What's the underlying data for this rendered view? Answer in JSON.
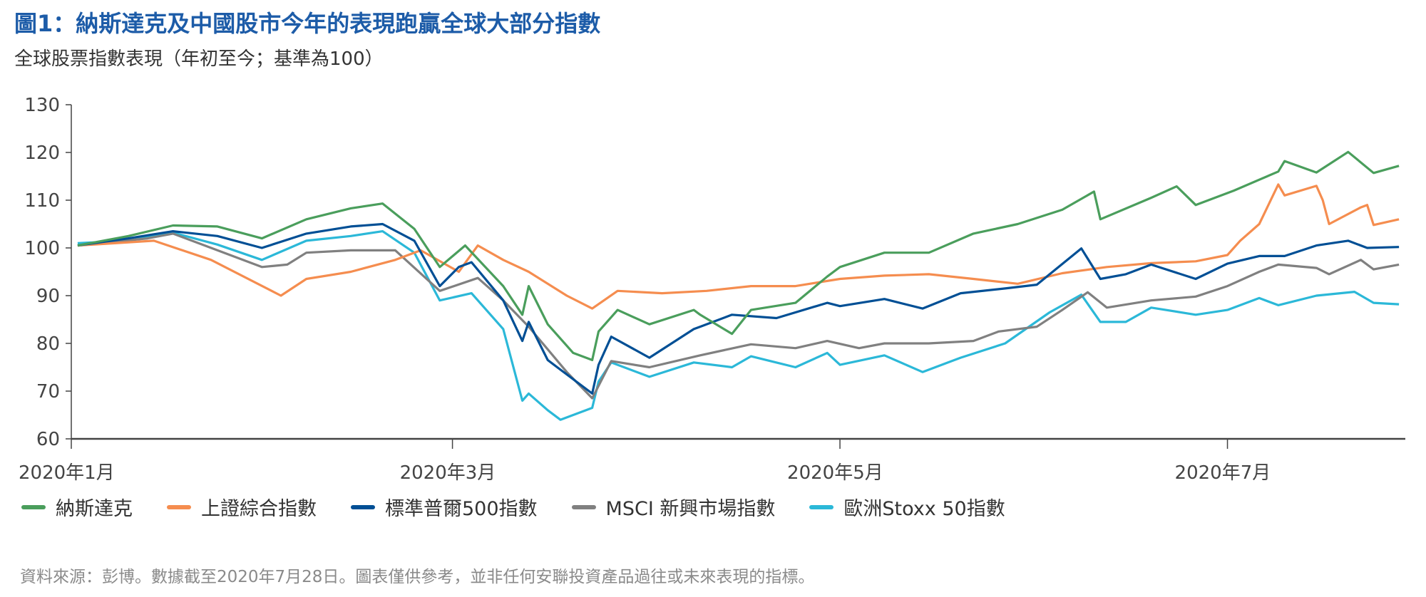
{
  "chart_data": {
    "type": "line",
    "title": "圖1：納斯達克及中國股市今年的表現跑贏全球大部分指數",
    "subtitle": "全球股票指數表現（年初至今；基準為100）",
    "ylim": [
      60,
      130
    ],
    "yticks": [
      "60",
      "70",
      "80",
      "90",
      "100",
      "110",
      "120",
      "130"
    ],
    "xlim": [
      "2020-01-01",
      "2020-07-29"
    ],
    "xticks": [
      {
        "date": "2020-01-01",
        "label": "2020年1月"
      },
      {
        "date": "2020-03-01",
        "label": "2020年3月"
      },
      {
        "date": "2020-05-01",
        "label": "2020年5月"
      },
      {
        "date": "2020-07-01",
        "label": "2020年7月"
      }
    ],
    "grid": false,
    "legend_placement": "bottom",
    "series": [
      {
        "name": "納斯達克",
        "color": "#4a9e5c",
        "points": [
          [
            "2020-01-02",
            100.5
          ],
          [
            "2020-01-10",
            102.5
          ],
          [
            "2020-01-17",
            104.7
          ],
          [
            "2020-01-24",
            104.5
          ],
          [
            "2020-01-31",
            102
          ],
          [
            "2020-02-07",
            106
          ],
          [
            "2020-02-14",
            108.3
          ],
          [
            "2020-02-19",
            109.3
          ],
          [
            "2020-02-24",
            104
          ],
          [
            "2020-02-28",
            96
          ],
          [
            "2020-03-03",
            100.5
          ],
          [
            "2020-03-09",
            92
          ],
          [
            "2020-03-12",
            86
          ],
          [
            "2020-03-13",
            92
          ],
          [
            "2020-03-16",
            84
          ],
          [
            "2020-03-20",
            78
          ],
          [
            "2020-03-23",
            76.5
          ],
          [
            "2020-03-24",
            82.5
          ],
          [
            "2020-03-27",
            87
          ],
          [
            "2020-04-01",
            84
          ],
          [
            "2020-04-08",
            87
          ],
          [
            "2020-04-09",
            86
          ],
          [
            "2020-04-14",
            82
          ],
          [
            "2020-04-17",
            87
          ],
          [
            "2020-04-24",
            88.5
          ],
          [
            "2020-04-29",
            94
          ],
          [
            "2020-05-01",
            96
          ],
          [
            "2020-05-08",
            99
          ],
          [
            "2020-05-15",
            99
          ],
          [
            "2020-05-22",
            103
          ],
          [
            "2020-05-29",
            105
          ],
          [
            "2020-06-05",
            108
          ],
          [
            "2020-06-10",
            111.8
          ],
          [
            "2020-06-11",
            106
          ],
          [
            "2020-06-19",
            110.5
          ],
          [
            "2020-06-23",
            112.9
          ],
          [
            "2020-06-26",
            109
          ],
          [
            "2020-07-02",
            112
          ],
          [
            "2020-07-09",
            116
          ],
          [
            "2020-07-10",
            118.2
          ],
          [
            "2020-07-15",
            115.8
          ],
          [
            "2020-07-20",
            120.1
          ],
          [
            "2020-07-24",
            115.7
          ],
          [
            "2020-07-28",
            117.2
          ]
        ]
      },
      {
        "name": "上證綜合指數",
        "color": "#f58d4f",
        "points": [
          [
            "2020-01-02",
            100.5
          ],
          [
            "2020-01-14",
            101.5
          ],
          [
            "2020-01-23",
            97.5
          ],
          [
            "2020-02-03",
            90
          ],
          [
            "2020-02-07",
            93.5
          ],
          [
            "2020-02-14",
            95
          ],
          [
            "2020-02-21",
            97.5
          ],
          [
            "2020-02-25",
            99.5
          ],
          [
            "2020-03-02",
            95
          ],
          [
            "2020-03-05",
            100.5
          ],
          [
            "2020-03-09",
            97.5
          ],
          [
            "2020-03-13",
            95
          ],
          [
            "2020-03-19",
            90
          ],
          [
            "2020-03-23",
            87.3
          ],
          [
            "2020-03-27",
            91
          ],
          [
            "2020-04-03",
            90.5
          ],
          [
            "2020-04-10",
            91
          ],
          [
            "2020-04-17",
            92
          ],
          [
            "2020-04-24",
            92
          ],
          [
            "2020-05-01",
            93.5
          ],
          [
            "2020-05-08",
            94.2
          ],
          [
            "2020-05-15",
            94.5
          ],
          [
            "2020-05-22",
            93.5
          ],
          [
            "2020-05-29",
            92.5
          ],
          [
            "2020-06-05",
            94.7
          ],
          [
            "2020-06-12",
            96
          ],
          [
            "2020-06-19",
            96.8
          ],
          [
            "2020-06-26",
            97.2
          ],
          [
            "2020-07-01",
            98.5
          ],
          [
            "2020-07-03",
            101.5
          ],
          [
            "2020-07-06",
            105
          ],
          [
            "2020-07-09",
            113.3
          ],
          [
            "2020-07-10",
            111
          ],
          [
            "2020-07-15",
            113
          ],
          [
            "2020-07-16",
            110
          ],
          [
            "2020-07-17",
            105
          ],
          [
            "2020-07-22",
            108.5
          ],
          [
            "2020-07-23",
            109
          ],
          [
            "2020-07-24",
            104.8
          ],
          [
            "2020-07-28",
            106
          ]
        ]
      },
      {
        "name": "標準普爾500指數",
        "color": "#004f95",
        "points": [
          [
            "2020-01-02",
            100.5
          ],
          [
            "2020-01-10",
            102
          ],
          [
            "2020-01-17",
            103.5
          ],
          [
            "2020-01-24",
            102.5
          ],
          [
            "2020-01-31",
            100
          ],
          [
            "2020-02-07",
            103
          ],
          [
            "2020-02-14",
            104.5
          ],
          [
            "2020-02-19",
            105
          ],
          [
            "2020-02-24",
            101.5
          ],
          [
            "2020-02-28",
            92
          ],
          [
            "2020-03-02",
            96
          ],
          [
            "2020-03-04",
            97
          ],
          [
            "2020-03-09",
            89
          ],
          [
            "2020-03-12",
            80.5
          ],
          [
            "2020-03-13",
            84.5
          ],
          [
            "2020-03-16",
            76.5
          ],
          [
            "2020-03-18",
            74.5
          ],
          [
            "2020-03-23",
            69.5
          ],
          [
            "2020-03-24",
            75.5
          ],
          [
            "2020-03-26",
            81.4
          ],
          [
            "2020-04-01",
            77
          ],
          [
            "2020-04-08",
            83
          ],
          [
            "2020-04-09",
            83.5
          ],
          [
            "2020-04-14",
            86
          ],
          [
            "2020-04-21",
            85.3
          ],
          [
            "2020-04-29",
            88.5
          ],
          [
            "2020-05-01",
            87.8
          ],
          [
            "2020-05-08",
            89.3
          ],
          [
            "2020-05-14",
            87.3
          ],
          [
            "2020-05-20",
            90.5
          ],
          [
            "2020-05-27",
            91.5
          ],
          [
            "2020-06-01",
            92.3
          ],
          [
            "2020-06-08",
            99.9
          ],
          [
            "2020-06-11",
            93.5
          ],
          [
            "2020-06-15",
            94.5
          ],
          [
            "2020-06-19",
            96.5
          ],
          [
            "2020-06-26",
            93.5
          ],
          [
            "2020-07-01",
            96.7
          ],
          [
            "2020-07-06",
            98.3
          ],
          [
            "2020-07-10",
            98.3
          ],
          [
            "2020-07-15",
            100.5
          ],
          [
            "2020-07-20",
            101.5
          ],
          [
            "2020-07-23",
            100
          ],
          [
            "2020-07-28",
            100.2
          ]
        ]
      },
      {
        "name": "MSCI 新興市場指數",
        "color": "#808080",
        "points": [
          [
            "2020-01-02",
            100.5
          ],
          [
            "2020-01-13",
            102
          ],
          [
            "2020-01-17",
            103
          ],
          [
            "2020-01-21",
            101
          ],
          [
            "2020-01-31",
            96
          ],
          [
            "2020-02-04",
            96.5
          ],
          [
            "2020-02-07",
            99
          ],
          [
            "2020-02-14",
            99.5
          ],
          [
            "2020-02-21",
            99.5
          ],
          [
            "2020-02-28",
            91
          ],
          [
            "2020-03-05",
            93.7
          ],
          [
            "2020-03-09",
            89
          ],
          [
            "2020-03-13",
            83.5
          ],
          [
            "2020-03-19",
            74
          ],
          [
            "2020-03-23",
            68.5
          ],
          [
            "2020-03-26",
            76.3
          ],
          [
            "2020-04-01",
            75
          ],
          [
            "2020-04-09",
            77.5
          ],
          [
            "2020-04-17",
            79.8
          ],
          [
            "2020-04-24",
            79
          ],
          [
            "2020-04-29",
            80.5
          ],
          [
            "2020-05-04",
            79
          ],
          [
            "2020-05-08",
            80
          ],
          [
            "2020-05-15",
            80
          ],
          [
            "2020-05-22",
            80.5
          ],
          [
            "2020-05-26",
            82.5
          ],
          [
            "2020-06-01",
            83.5
          ],
          [
            "2020-06-05",
            87
          ],
          [
            "2020-06-09",
            90.7
          ],
          [
            "2020-06-12",
            87.5
          ],
          [
            "2020-06-19",
            89
          ],
          [
            "2020-06-26",
            89.8
          ],
          [
            "2020-07-01",
            92
          ],
          [
            "2020-07-06",
            95
          ],
          [
            "2020-07-09",
            96.5
          ],
          [
            "2020-07-15",
            95.8
          ],
          [
            "2020-07-17",
            94.5
          ],
          [
            "2020-07-22",
            97.5
          ],
          [
            "2020-07-24",
            95.5
          ],
          [
            "2020-07-28",
            96.5
          ]
        ]
      },
      {
        "name": "歐洲Stoxx 50指數",
        "color": "#2bb8d8",
        "points": [
          [
            "2020-01-02",
            101
          ],
          [
            "2020-01-10",
            101.5
          ],
          [
            "2020-01-17",
            103.2
          ],
          [
            "2020-01-24",
            100.7
          ],
          [
            "2020-01-31",
            97.5
          ],
          [
            "2020-02-07",
            101.5
          ],
          [
            "2020-02-14",
            102.5
          ],
          [
            "2020-02-19",
            103.5
          ],
          [
            "2020-02-24",
            99
          ],
          [
            "2020-02-28",
            89
          ],
          [
            "2020-03-04",
            90.5
          ],
          [
            "2020-03-09",
            83
          ],
          [
            "2020-03-12",
            68
          ],
          [
            "2020-03-13",
            69.5
          ],
          [
            "2020-03-16",
            66
          ],
          [
            "2020-03-18",
            64
          ],
          [
            "2020-03-23",
            66.5
          ],
          [
            "2020-03-24",
            72
          ],
          [
            "2020-03-26",
            76
          ],
          [
            "2020-04-01",
            73
          ],
          [
            "2020-04-08",
            76
          ],
          [
            "2020-04-14",
            75
          ],
          [
            "2020-04-17",
            77.3
          ],
          [
            "2020-04-24",
            75
          ],
          [
            "2020-04-29",
            78
          ],
          [
            "2020-05-01",
            75.5
          ],
          [
            "2020-05-08",
            77.5
          ],
          [
            "2020-05-14",
            74
          ],
          [
            "2020-05-20",
            77
          ],
          [
            "2020-05-27",
            80
          ],
          [
            "2020-06-03",
            86.5
          ],
          [
            "2020-06-08",
            90.2
          ],
          [
            "2020-06-11",
            84.5
          ],
          [
            "2020-06-15",
            84.5
          ],
          [
            "2020-06-19",
            87.5
          ],
          [
            "2020-06-26",
            86
          ],
          [
            "2020-07-01",
            87
          ],
          [
            "2020-07-06",
            89.5
          ],
          [
            "2020-07-09",
            88
          ],
          [
            "2020-07-15",
            90
          ],
          [
            "2020-07-21",
            90.8
          ],
          [
            "2020-07-24",
            88.5
          ],
          [
            "2020-07-28",
            88.2
          ]
        ]
      }
    ],
    "source": "資料來源：彭博。數據截至2020年7月28日。圖表僅供參考，並非任何安聯投資產品過往或未來表現的指標。"
  }
}
